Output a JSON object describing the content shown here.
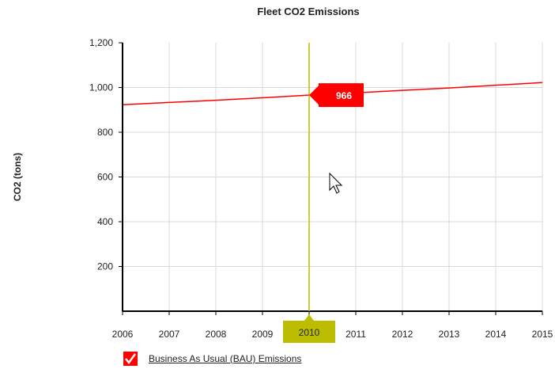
{
  "chart_data": {
    "type": "line",
    "title": "Fleet CO2 Emissions",
    "ylabel": "CO2 (tons)",
    "xlabel": "",
    "x": [
      2006,
      2007,
      2008,
      2009,
      2010,
      2011,
      2012,
      2013,
      2014,
      2015
    ],
    "xlim": [
      2006,
      2015
    ],
    "ylim": [
      0,
      1200
    ],
    "yticks": [
      200,
      400,
      600,
      800,
      1000,
      1200
    ],
    "ytick_labels": [
      "200",
      "400",
      "600",
      "800",
      "1,000",
      "1,200"
    ],
    "series": [
      {
        "name": "Business As Usual (BAU) Emissions",
        "color": "#ff0000",
        "values": [
          923,
          933,
          943,
          954,
          966,
          976,
          987,
          998,
          1010,
          1022
        ]
      }
    ],
    "grid": true,
    "legend": "bottom-left",
    "crosshair": {
      "x": 2010,
      "x_label": "2010",
      "value": 966,
      "value_label": "966",
      "label_color": "#bcbc00"
    }
  },
  "legend": {
    "checkbox_color": "#ff0000",
    "checked": true
  }
}
